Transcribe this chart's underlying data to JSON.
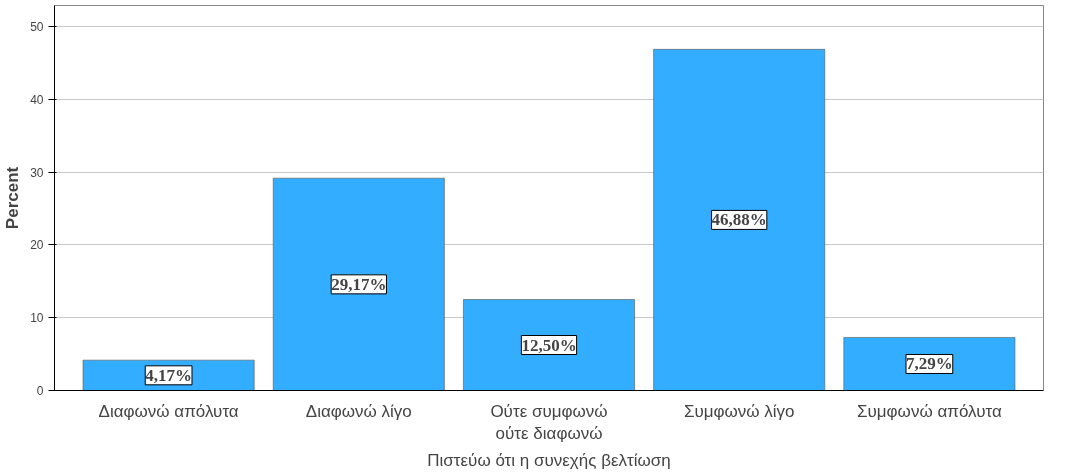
{
  "chart_data": {
    "type": "bar",
    "xlabel": "Πιστεύω ότι η συνεχής βελτίωση",
    "ylabel": "Percent",
    "categories": [
      "Διαφωνώ απόλυτα",
      "Διαφωνώ λίγο",
      "Ούτε συμφωνώ\nούτε διαφωνώ",
      "Συμφωνώ λίγο",
      "Συμφωνώ απόλυτα"
    ],
    "values": [
      4.17,
      29.17,
      12.5,
      46.88,
      7.29
    ],
    "value_labels": [
      "4,17%",
      "29,17%",
      "12,50%",
      "46,88%",
      "7,29%"
    ],
    "color": "#33adff",
    "ylim": [
      0,
      52.9
    ],
    "yticks": [
      0,
      10,
      20,
      30,
      40,
      50
    ],
    "grid": "y"
  }
}
